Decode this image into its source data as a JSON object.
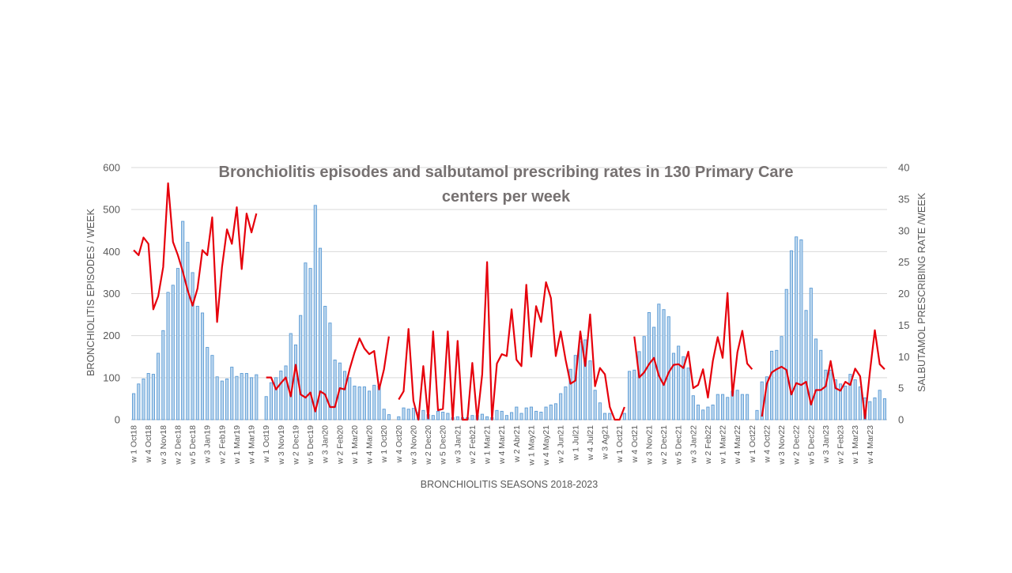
{
  "chart_data": {
    "type": "bar",
    "title_line1": "Bronchiolitis  episodes  and  salbutamol  prescribing  rates  in  130 Primary  Care",
    "title_line2": "centers per week",
    "xlabel": "BRONCHIOLITIS SEASONS 2018-2023",
    "ylabel_left": "BRONCHIOLITIS EPISODES / WEEK",
    "ylabel_right": "SALBUTAMOL PRESCRIBING RATE /WEEK",
    "ylim_left": [
      0,
      600
    ],
    "yticks_left": [
      "0",
      "100",
      "200",
      "300",
      "400",
      "500",
      "600"
    ],
    "ylim_right": [
      0,
      40
    ],
    "yticks_right": [
      "0",
      "5",
      "10",
      "15",
      "20",
      "25",
      "30",
      "35",
      "40"
    ],
    "grid": true,
    "legend": "none",
    "colors": {
      "bar_fill": "#bdd7ee",
      "bar_stroke": "#5b9bd5",
      "line": "#e6000b",
      "grid": "#d9d9d9",
      "title": "#767171",
      "text": "#595959"
    },
    "x_tick_labels": [
      "w 1 Oct18",
      "w 4 Oct18",
      "w 3 Nov18",
      "w 2 Dec18",
      "w 5 Dec18",
      "w 3 Jan19",
      "w 2 Feb19",
      "w 1 Mar19",
      "w 4 Mar19",
      "w 1 Oct19",
      "w 3 Nov19",
      "w 2 Dec19",
      "w 5 Dec19",
      "w 3 Jan20",
      "w 2 Feb20",
      "w 1 Mar20",
      "w 4 Mar20",
      "w 1 Oct20",
      "w 4 Oct20",
      "w 3 Nov20",
      "w 2 Dec20",
      "w 5 Dec20",
      "w 3 Jan21",
      "w 2 Feb21",
      "w 1 Mar21",
      "w 4 Mar21",
      "w 2 Abr21",
      "w 1 May21",
      "w 4 May21",
      "w 2 Jun21",
      "w 1 Jul21",
      "w 4 Jul21",
      "w 3 Ag21",
      "w 1 Oct21",
      "w 4 Oct21",
      "w 3 Nov21",
      "w 2 Dec21",
      "w 5 Dec21",
      "w 3 Jan22",
      "w 2 Feb22",
      "w 1 Mar22",
      "w 4 Mar22",
      "w 1 Oct22",
      "w 4 Oct22",
      "w 3 Nov22",
      "w 2 Dec22",
      "w 5 Dec22",
      "w 3 Jan23",
      "w 2 Feb23",
      "w 1 Mar23",
      "w 4 Mar23"
    ],
    "series": [
      {
        "name": "Bronchiolitis episodes",
        "axis": "left",
        "type": "bar",
        "values": [
          62,
          85,
          97,
          110,
          108,
          158,
          212,
          303,
          320,
          360,
          472,
          422,
          350,
          270,
          254,
          172,
          153,
          102,
          92,
          97,
          125,
          103,
          110,
          110,
          100,
          107,
          null,
          55,
          88,
          100,
          116,
          128,
          205,
          178,
          248,
          373,
          360,
          510,
          408,
          270,
          230,
          142,
          135,
          115,
          100,
          80,
          78,
          78,
          68,
          82,
          80,
          25,
          12,
          null,
          7,
          28,
          25,
          27,
          17,
          22,
          12,
          10,
          20,
          18,
          15,
          5,
          7,
          5,
          5,
          10,
          10,
          13,
          7,
          5,
          22,
          20,
          10,
          17,
          30,
          15,
          28,
          30,
          20,
          18,
          30,
          35,
          38,
          62,
          78,
          120,
          153,
          185,
          190,
          140,
          70,
          40,
          15,
          15,
          null,
          null,
          15,
          115,
          118,
          162,
          198,
          255,
          220,
          275,
          262,
          245,
          158,
          175,
          150,
          123,
          57,
          35,
          23,
          30,
          35,
          60,
          60,
          53,
          68,
          70,
          60,
          60,
          null,
          22,
          90,
          102,
          163,
          165,
          198,
          310,
          402,
          435,
          428,
          260,
          313,
          192,
          165,
          118,
          118,
          95,
          85,
          80,
          108,
          95,
          78,
          52,
          43,
          52,
          70,
          50
        ]
      },
      {
        "name": "Salbutamol prescribing rate",
        "axis": "right",
        "type": "line",
        "values": [
          26.9,
          26.1,
          28.9,
          27.9,
          17.5,
          19.6,
          24.2,
          37.5,
          28.2,
          26.1,
          23.5,
          20.5,
          18.1,
          20.8,
          26.9,
          26.1,
          32.1,
          15.5,
          24.2,
          30.2,
          27.9,
          33.7,
          23.9,
          32.7,
          29.7,
          32.7,
          null,
          6.7,
          6.7,
          4.8,
          5.8,
          6.7,
          3.7,
          8.7,
          4.0,
          3.5,
          4.3,
          1.3,
          4.5,
          4.0,
          2.0,
          2.0,
          5.0,
          4.8,
          8.0,
          10.7,
          12.9,
          11.3,
          10.4,
          10.9,
          4.8,
          8.0,
          13.2,
          null,
          3.2,
          4.5,
          14.4,
          3.0,
          0.0,
          8.5,
          0.2,
          14.0,
          1.5,
          1.7,
          14.0,
          0.0,
          12.5,
          0.0,
          0.0,
          9.0,
          0.0,
          7.2,
          25.0,
          0.0,
          8.9,
          10.4,
          10.1,
          17.5,
          9.5,
          8.5,
          21.4,
          10.0,
          18.0,
          15.5,
          21.8,
          19.3,
          10.1,
          14.0,
          9.5,
          5.7,
          6.2,
          14.0,
          8.5,
          16.7,
          5.3,
          8.2,
          7.2,
          2.0,
          0.0,
          0.0,
          2.0,
          null,
          13.2,
          6.7,
          7.5,
          8.8,
          9.8,
          7.0,
          5.5,
          7.5,
          8.7,
          8.8,
          8.2,
          10.8,
          5.0,
          5.5,
          8.0,
          3.5,
          9.3,
          13.1,
          9.8,
          20.1,
          3.8,
          10.7,
          14.1,
          8.9,
          8.0,
          null,
          0.5,
          5.7,
          7.5,
          8.0,
          8.4,
          7.9,
          4.0,
          5.8,
          5.5,
          6.0,
          2.4,
          4.7,
          4.7,
          5.3,
          9.3,
          5.0,
          4.6,
          6.0,
          5.5,
          8.1,
          6.9,
          0.2,
          7.6,
          14.2,
          8.8,
          8.0
        ]
      }
    ]
  }
}
